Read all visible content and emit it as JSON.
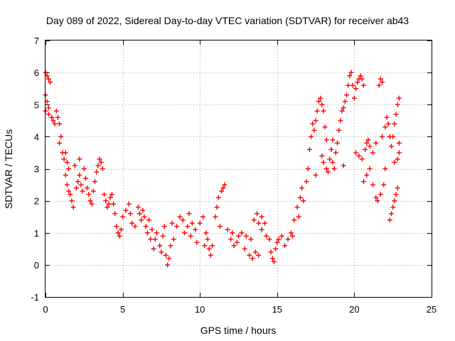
{
  "chart_data": {
    "type": "scatter",
    "title": "Day 089 of 2022, Sidereal Day-to-day VTEC variation (SDTVAR) for receiver ab43",
    "xlabel": "GPS time / hours",
    "ylabel": "SDTVAR / TECUs",
    "xlim": [
      0,
      25
    ],
    "ylim": [
      -1,
      7
    ],
    "xticks": [
      0,
      5,
      10,
      15,
      20,
      25
    ],
    "yticks": [
      -1,
      0,
      1,
      2,
      3,
      4,
      5,
      6,
      7
    ],
    "grid": true,
    "marker": "+",
    "color": "#ff0000",
    "series": [
      {
        "name": "SDTVAR",
        "points": [
          [
            0.0,
            6.0
          ],
          [
            0.1,
            5.9
          ],
          [
            0.2,
            5.8
          ],
          [
            0.3,
            5.7
          ],
          [
            0.0,
            5.3
          ],
          [
            0.1,
            5.1
          ],
          [
            0.2,
            4.9
          ],
          [
            0.0,
            4.8
          ],
          [
            0.2,
            4.7
          ],
          [
            0.4,
            4.6
          ],
          [
            0.5,
            4.5
          ],
          [
            0.6,
            4.4
          ],
          [
            0.7,
            4.8
          ],
          [
            0.8,
            4.6
          ],
          [
            0.9,
            4.4
          ],
          [
            1.0,
            4.0
          ],
          [
            0.9,
            3.8
          ],
          [
            1.1,
            3.5
          ],
          [
            1.2,
            3.3
          ],
          [
            1.3,
            3.5
          ],
          [
            1.4,
            3.2
          ],
          [
            1.5,
            3.0
          ],
          [
            1.3,
            2.8
          ],
          [
            1.4,
            2.5
          ],
          [
            1.5,
            2.3
          ],
          [
            1.6,
            2.2
          ],
          [
            1.7,
            2.0
          ],
          [
            1.8,
            1.8
          ],
          [
            2.0,
            2.4
          ],
          [
            2.1,
            2.6
          ],
          [
            2.2,
            2.8
          ],
          [
            2.3,
            2.5
          ],
          [
            2.4,
            2.3
          ],
          [
            2.5,
            3.0
          ],
          [
            2.6,
            2.7
          ],
          [
            2.7,
            2.4
          ],
          [
            2.8,
            2.2
          ],
          [
            2.9,
            2.0
          ],
          [
            3.0,
            1.9
          ],
          [
            3.1,
            2.3
          ],
          [
            3.2,
            2.6
          ],
          [
            3.3,
            2.9
          ],
          [
            3.4,
            3.1
          ],
          [
            3.5,
            3.3
          ],
          [
            3.6,
            3.2
          ],
          [
            3.7,
            3.0
          ],
          [
            3.8,
            2.2
          ],
          [
            3.9,
            2.0
          ],
          [
            4.0,
            1.8
          ],
          [
            4.1,
            1.9
          ],
          [
            4.2,
            2.1
          ],
          [
            4.3,
            2.2
          ],
          [
            4.4,
            1.9
          ],
          [
            4.5,
            1.6
          ],
          [
            4.6,
            1.2
          ],
          [
            4.7,
            1.0
          ],
          [
            4.8,
            0.9
          ],
          [
            4.9,
            1.1
          ],
          [
            5.0,
            1.5
          ],
          [
            5.2,
            1.7
          ],
          [
            5.4,
            1.9
          ],
          [
            5.5,
            1.6
          ],
          [
            5.6,
            1.3
          ],
          [
            5.8,
            1.2
          ],
          [
            6.0,
            1.8
          ],
          [
            6.1,
            1.6
          ],
          [
            6.2,
            1.4
          ],
          [
            6.3,
            1.7
          ],
          [
            6.4,
            1.5
          ],
          [
            6.5,
            1.2
          ],
          [
            6.6,
            1.0
          ],
          [
            6.8,
            0.8
          ],
          [
            7.0,
            0.5
          ],
          [
            7.1,
            0.8
          ],
          [
            7.2,
            1.0
          ],
          [
            7.4,
            0.6
          ],
          [
            7.5,
            0.4
          ],
          [
            7.6,
            0.9
          ],
          [
            7.7,
            1.2
          ],
          [
            7.8,
            0.3
          ],
          [
            7.9,
            0.0
          ],
          [
            8.0,
            0.2
          ],
          [
            8.1,
            0.6
          ],
          [
            8.3,
            0.8
          ],
          [
            8.5,
            1.2
          ],
          [
            8.7,
            1.5
          ],
          [
            8.9,
            1.4
          ],
          [
            9.0,
            1.0
          ],
          [
            9.2,
            1.2
          ],
          [
            9.3,
            1.6
          ],
          [
            9.5,
            1.3
          ],
          [
            9.7,
            1.1
          ],
          [
            9.8,
            0.7
          ],
          [
            10.0,
            1.3
          ],
          [
            10.2,
            1.5
          ],
          [
            10.4,
            1.0
          ],
          [
            10.5,
            0.8
          ],
          [
            10.6,
            0.5
          ],
          [
            10.7,
            0.3
          ],
          [
            10.8,
            0.6
          ],
          [
            11.0,
            1.5
          ],
          [
            11.1,
            1.8
          ],
          [
            11.2,
            2.1
          ],
          [
            11.4,
            2.3
          ],
          [
            11.5,
            2.4
          ],
          [
            11.6,
            2.5
          ],
          [
            11.8,
            1.1
          ],
          [
            12.0,
            0.8
          ],
          [
            12.2,
            0.6
          ],
          [
            12.4,
            0.7
          ],
          [
            12.5,
            0.9
          ],
          [
            12.7,
            1.0
          ],
          [
            13.0,
            0.9
          ],
          [
            13.3,
            0.8
          ],
          [
            13.5,
            1.4
          ],
          [
            13.7,
            1.6
          ],
          [
            13.8,
            1.3
          ],
          [
            14.0,
            1.1
          ],
          [
            13.2,
            0.3
          ],
          [
            13.4,
            0.2
          ],
          [
            13.6,
            0.4
          ],
          [
            13.8,
            0.3
          ],
          [
            14.0,
            1.5
          ],
          [
            14.2,
            1.3
          ],
          [
            14.3,
            0.9
          ],
          [
            14.5,
            0.8
          ],
          [
            14.6,
            0.4
          ],
          [
            14.7,
            0.2
          ],
          [
            14.8,
            0.1
          ],
          [
            15.0,
            0.7
          ],
          [
            15.1,
            0.8
          ],
          [
            15.3,
            0.9
          ],
          [
            15.5,
            0.6
          ],
          [
            15.7,
            0.8
          ],
          [
            15.9,
            1.0
          ],
          [
            16.1,
            1.4
          ],
          [
            16.3,
            1.8
          ],
          [
            16.5,
            2.1
          ],
          [
            16.6,
            2.4
          ],
          [
            16.7,
            2.0
          ],
          [
            16.9,
            2.6
          ],
          [
            17.0,
            3.0
          ],
          [
            17.1,
            3.6
          ],
          [
            17.2,
            4.0
          ],
          [
            17.3,
            4.4
          ],
          [
            17.4,
            4.2
          ],
          [
            17.5,
            4.5
          ],
          [
            17.6,
            4.8
          ],
          [
            17.7,
            5.1
          ],
          [
            17.8,
            5.2
          ],
          [
            17.9,
            5.0
          ],
          [
            18.0,
            4.8
          ],
          [
            18.1,
            4.3
          ],
          [
            18.2,
            3.9
          ],
          [
            17.9,
            3.4
          ],
          [
            18.0,
            3.2
          ],
          [
            18.2,
            3.0
          ],
          [
            18.3,
            2.9
          ],
          [
            18.4,
            3.3
          ],
          [
            18.5,
            3.6
          ],
          [
            18.6,
            3.2
          ],
          [
            18.7,
            3.0
          ],
          [
            18.8,
            3.5
          ],
          [
            18.9,
            3.8
          ],
          [
            19.0,
            4.2
          ],
          [
            19.1,
            4.5
          ],
          [
            19.2,
            4.8
          ],
          [
            19.3,
            4.9
          ],
          [
            19.4,
            5.1
          ],
          [
            19.5,
            5.3
          ],
          [
            19.6,
            5.6
          ],
          [
            19.7,
            5.9
          ],
          [
            19.8,
            6.0
          ],
          [
            19.9,
            5.6
          ],
          [
            20.0,
            5.2
          ],
          [
            20.1,
            5.5
          ],
          [
            20.2,
            5.7
          ],
          [
            20.3,
            5.8
          ],
          [
            20.4,
            5.9
          ],
          [
            20.5,
            5.8
          ],
          [
            20.6,
            5.6
          ],
          [
            20.1,
            3.5
          ],
          [
            20.3,
            3.4
          ],
          [
            20.5,
            3.3
          ],
          [
            20.7,
            3.6
          ],
          [
            20.8,
            3.8
          ],
          [
            20.9,
            3.9
          ],
          [
            21.0,
            3.7
          ],
          [
            21.2,
            3.5
          ],
          [
            21.4,
            3.8
          ],
          [
            20.6,
            2.6
          ],
          [
            20.8,
            2.8
          ],
          [
            21.0,
            3.0
          ],
          [
            21.2,
            2.5
          ],
          [
            21.4,
            2.1
          ],
          [
            21.5,
            2.0
          ],
          [
            21.7,
            2.2
          ],
          [
            21.9,
            2.5
          ],
          [
            22.0,
            3.0
          ],
          [
            21.8,
            4.0
          ],
          [
            22.0,
            4.3
          ],
          [
            22.1,
            4.6
          ],
          [
            22.2,
            4.4
          ],
          [
            22.3,
            4.0
          ],
          [
            22.4,
            3.7
          ],
          [
            22.5,
            4.0
          ],
          [
            22.6,
            4.4
          ],
          [
            22.7,
            4.7
          ],
          [
            22.8,
            5.0
          ],
          [
            22.9,
            5.2
          ],
          [
            22.3,
            1.4
          ],
          [
            22.4,
            1.6
          ],
          [
            22.5,
            1.8
          ],
          [
            22.6,
            2.0
          ],
          [
            22.7,
            2.2
          ],
          [
            22.8,
            2.4
          ],
          [
            22.6,
            3.2
          ],
          [
            22.8,
            3.3
          ],
          [
            22.9,
            3.5
          ],
          [
            22.9,
            3.8
          ],
          [
            21.7,
            5.8
          ],
          [
            21.6,
            5.6
          ],
          [
            21.8,
            5.7
          ],
          [
            1.9,
            3.1
          ],
          [
            2.2,
            3.3
          ],
          [
            6.7,
            1.4
          ],
          [
            6.9,
            1.1
          ],
          [
            8.2,
            1.3
          ],
          [
            9.4,
            0.9
          ],
          [
            10.3,
            0.6
          ],
          [
            11.3,
            1.2
          ],
          [
            12.1,
            1.0
          ],
          [
            12.9,
            0.5
          ],
          [
            14.9,
            0.5
          ],
          [
            16.0,
            0.9
          ],
          [
            16.4,
            1.5
          ],
          [
            17.5,
            2.8
          ],
          [
            18.6,
            3.9
          ],
          [
            19.3,
            3.1
          ]
        ]
      }
    ]
  }
}
